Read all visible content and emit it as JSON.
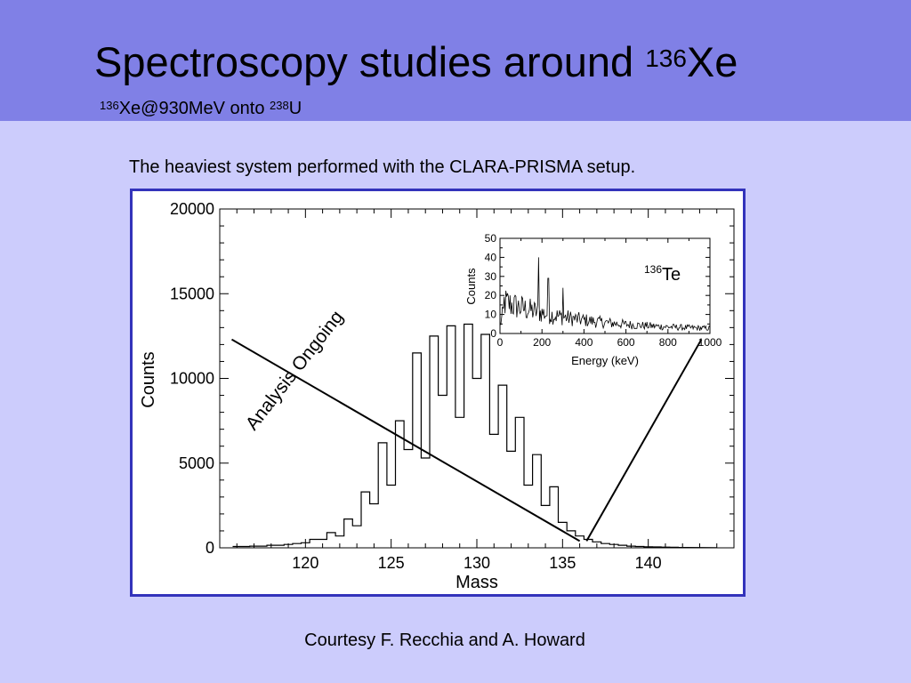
{
  "slide": {
    "title_main": "Spectroscopy studies around ",
    "title_sup": "136",
    "title_elem": "Xe",
    "subtitle_sup1": "136",
    "subtitle_text1": "Xe@930MeV onto ",
    "subtitle_sup2": "238",
    "subtitle_text2": "U",
    "description": "The heaviest system performed with the CLARA-PRISMA setup.",
    "annotation": "Analysis Ongoing",
    "credit": "Courtesy F. Recchia and A. Howard"
  },
  "chart_data": [
    {
      "type": "line",
      "style": "histogram",
      "xlabel": "Mass",
      "ylabel": "Counts",
      "xlim": [
        115,
        145
      ],
      "ylim": [
        0,
        20000
      ],
      "xticks": [
        "120",
        "125",
        "130",
        "135",
        "140"
      ],
      "yticks": [
        "0",
        "5000",
        "10000",
        "15000",
        "20000"
      ],
      "grid": false,
      "x": [
        116,
        116.5,
        117,
        117.5,
        118,
        118.5,
        119,
        119.5,
        120,
        120.5,
        121,
        121.5,
        122,
        122.5,
        123,
        123.5,
        124,
        124.5,
        125,
        125.5,
        126,
        126.5,
        127,
        127.5,
        128,
        128.5,
        129,
        129.5,
        130,
        130.5,
        131,
        131.5,
        132,
        132.5,
        133,
        133.5,
        134,
        134.5,
        135,
        135.5,
        136,
        136.5,
        137,
        137.5,
        138,
        138.5,
        139,
        139.5,
        140,
        140.5,
        141,
        141.5,
        142
      ],
      "values": [
        80,
        80,
        100,
        100,
        150,
        150,
        200,
        250,
        300,
        500,
        500,
        900,
        700,
        1700,
        1300,
        3300,
        2600,
        6200,
        3700,
        7500,
        5800,
        11500,
        5300,
        12500,
        9000,
        13100,
        7700,
        13200,
        10000,
        12600,
        6700,
        9600,
        5700,
        7700,
        3700,
        5500,
        2500,
        3600,
        1500,
        1000,
        700,
        500,
        350,
        250,
        200,
        150,
        100,
        80,
        60,
        50,
        40,
        30,
        20
      ],
      "lines": [
        {
          "name": "",
          "from": [
            136.0,
            400
          ],
          "to": [
            115.7,
            12300
          ]
        },
        {
          "name": "",
          "from": [
            136.4,
            400
          ],
          "to": [
            143.1,
            12300
          ]
        }
      ]
    },
    {
      "type": "line",
      "style": "histogram",
      "title": "136Te",
      "title_sup": "136",
      "title_text": "Te",
      "xlabel": "Energy (keV)",
      "ylabel": "Counts",
      "xlim": [
        0,
        1000
      ],
      "ylim": [
        0,
        50
      ],
      "xticks": [
        "0",
        "200",
        "400",
        "600",
        "800",
        "1000"
      ],
      "yticks": [
        "0",
        "10",
        "20",
        "30",
        "40",
        "50"
      ],
      "grid": false,
      "peaks": [
        {
          "x": 185,
          "y": 40
        },
        {
          "x": 230,
          "y": 29
        },
        {
          "x": 300,
          "y": 24
        }
      ]
    }
  ]
}
